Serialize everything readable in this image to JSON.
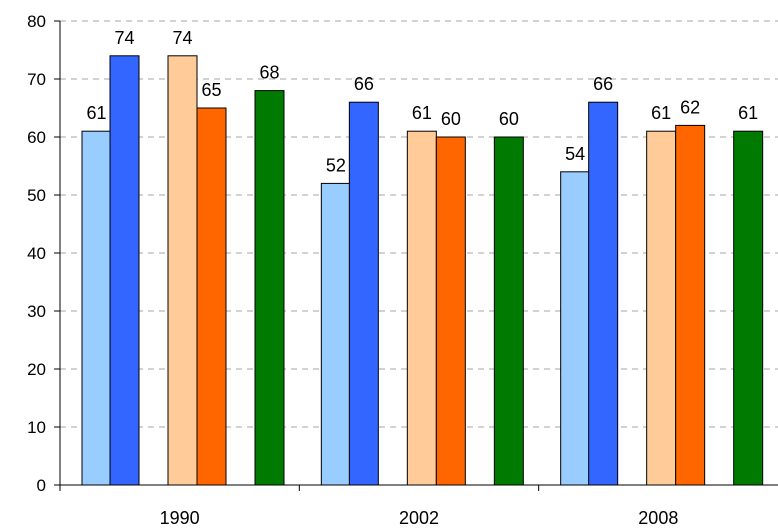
{
  "chart_data": {
    "type": "bar",
    "title": "",
    "xlabel": "",
    "ylabel": "",
    "categories": [
      "1990",
      "2002",
      "2008"
    ],
    "ylim": [
      0,
      80
    ],
    "yticks": [
      "0",
      "10",
      "20",
      "30",
      "40",
      "50",
      "60",
      "70",
      "80"
    ],
    "grid": true,
    "legend": "none",
    "series": [
      {
        "color": "#99ccff",
        "values": [
          61,
          52,
          54
        ],
        "labels": [
          "61",
          "52",
          "54"
        ]
      },
      {
        "color": "#3366ff",
        "values": [
          74,
          66,
          66
        ],
        "labels": [
          "74",
          "66",
          "66"
        ]
      },
      {
        "color": "#ffcc99",
        "values": [
          74,
          61,
          61
        ],
        "labels": [
          "74",
          "61",
          "61"
        ]
      },
      {
        "color": "#ff6600",
        "values": [
          65,
          60,
          62
        ],
        "labels": [
          "65",
          "60",
          "62"
        ]
      },
      {
        "color": "#007a00",
        "values": [
          68,
          60,
          61
        ],
        "labels": [
          "68",
          "60",
          "61"
        ]
      }
    ]
  }
}
